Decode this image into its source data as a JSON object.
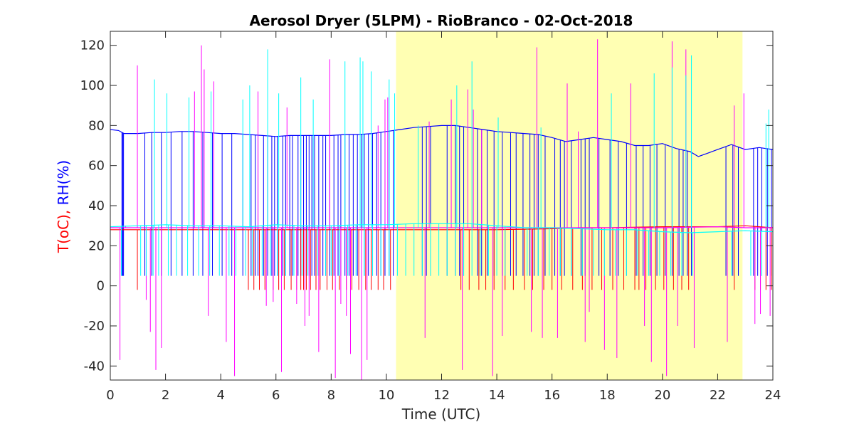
{
  "chart_data": {
    "type": "line",
    "title": "Aerosol Dryer (5LPM) - RioBranco - 02-Oct-2018",
    "xlabel": "Time (UTC)",
    "ylabel_parts": [
      {
        "text": "T(oC),",
        "color": "#ff0000"
      },
      {
        "text": " RH(%)",
        "color": "#0000ff"
      }
    ],
    "xlim": [
      0,
      24
    ],
    "ylim": [
      -47,
      127
    ],
    "xticks": [
      0,
      2,
      4,
      6,
      8,
      10,
      12,
      14,
      16,
      18,
      20,
      22,
      24
    ],
    "yticks": [
      -40,
      -20,
      0,
      20,
      40,
      60,
      80,
      100,
      120
    ],
    "grid": false,
    "shaded_region": {
      "x_start": 10.35,
      "x_end": 22.9,
      "color": "#ffffb3"
    },
    "series": [
      {
        "color": "#0000ff",
        "role": "RH baseline",
        "x": [
          0,
          0.3,
          0.5,
          1,
          1.5,
          2,
          2.5,
          3,
          3.5,
          4,
          4.5,
          5,
          5.5,
          6,
          6.5,
          7,
          7.5,
          8,
          8.5,
          9,
          9.5,
          10,
          10.5,
          11,
          11.5,
          12,
          12.5,
          13,
          13.5,
          14,
          14.5,
          15,
          15.5,
          16,
          16.5,
          17,
          17.5,
          18,
          18.5,
          19,
          19.5,
          20,
          20.5,
          21,
          21.3,
          21.6,
          22,
          22.5,
          23,
          23.5,
          24
        ],
        "y": [
          78,
          77.5,
          76,
          76,
          76.5,
          76.5,
          77,
          77,
          76.5,
          76,
          76,
          75.5,
          75,
          74.5,
          75,
          75,
          75,
          75,
          75.5,
          75.5,
          76,
          77,
          78,
          79,
          79.5,
          80,
          80,
          79,
          78,
          77,
          76.5,
          76,
          75.5,
          74,
          72,
          73,
          74,
          73,
          72,
          70,
          70,
          71,
          68.5,
          67,
          64.5,
          66,
          68,
          70.5,
          68,
          69,
          68
        ]
      },
      {
        "color": "#0000ff",
        "role": "RH dropouts",
        "drop_to": 5,
        "spikes": [
          0.42,
          0.45,
          0.48,
          1.25,
          1.5,
          1.85,
          2.2,
          2.6,
          3.0,
          3.35,
          3.7,
          4.05,
          4.4,
          4.8,
          5.1,
          5.25,
          5.35,
          5.55,
          5.7,
          5.85,
          5.95,
          6.05,
          6.25,
          6.35,
          6.5,
          6.6,
          6.8,
          6.9,
          7.0,
          7.1,
          7.2,
          7.3,
          7.4,
          7.55,
          7.7,
          7.8,
          7.95,
          8.1,
          8.25,
          8.35,
          8.5,
          8.65,
          8.8,
          8.95,
          9.1,
          9.2,
          9.35,
          9.5,
          9.65,
          9.8,
          9.95,
          10.1,
          10.25,
          11.3,
          11.45,
          11.6,
          12.2,
          12.5,
          12.65,
          12.8,
          13.3,
          13.45,
          13.65,
          13.9,
          14.2,
          14.5,
          14.7,
          14.95,
          15.2,
          15.35,
          15.5,
          15.75,
          16.1,
          16.3,
          16.45,
          16.7,
          17.05,
          17.2,
          17.35,
          17.7,
          18.1,
          18.4,
          18.7,
          19.05,
          19.3,
          19.55,
          19.8,
          20.1,
          20.35,
          20.6,
          20.75,
          20.9,
          21.05,
          22.3,
          22.55,
          22.75,
          23.3,
          23.45,
          23.6,
          23.8,
          23.95
        ]
      },
      {
        "color": "#ff0000",
        "role": "T trace",
        "x": [
          0,
          0.5,
          1,
          2,
          4,
          6,
          8,
          10,
          12,
          14,
          16,
          17,
          18,
          20,
          22,
          23,
          24
        ],
        "y": [
          28,
          28,
          28,
          28,
          28,
          28,
          28,
          28,
          28,
          28,
          28.5,
          29,
          29,
          29.5,
          29.5,
          30,
          29
        ]
      },
      {
        "color": "#ff0000",
        "role": "T dropouts",
        "drop_to": -2,
        "spikes": [
          0.98,
          5.0,
          5.2,
          5.4,
          5.6,
          5.9,
          6.1,
          6.3,
          6.55,
          6.75,
          6.9,
          7.0,
          7.1,
          7.25,
          7.45,
          7.6,
          7.85,
          8.05,
          8.3,
          8.55,
          8.75,
          9.0,
          9.25,
          9.45,
          9.7,
          9.9,
          10.15,
          12.7,
          13.0,
          13.35,
          13.6,
          13.9,
          14.3,
          14.6,
          15.0,
          15.3,
          15.7,
          16.0,
          16.35,
          16.75,
          17.1,
          17.45,
          17.8,
          18.2,
          18.6,
          19.0,
          19.15,
          19.4,
          19.75,
          20.05,
          20.4,
          20.7,
          20.95,
          22.35,
          22.6,
          23.35,
          23.55,
          23.75,
          23.95
        ]
      },
      {
        "color": "#ff00ff",
        "role": "sensor 2 trace",
        "x": [
          0,
          2,
          4,
          6,
          8,
          10,
          12,
          14,
          16,
          18,
          20,
          22,
          23,
          24
        ],
        "y": [
          29,
          29,
          29,
          29,
          29,
          29,
          29,
          29,
          29,
          29,
          29,
          29.5,
          29,
          29
        ]
      },
      {
        "color": "#ff00ff",
        "role": "sensor 2 spikes",
        "spikes": [
          [
            0.35,
            -37
          ],
          [
            0.55,
            30
          ],
          [
            0.98,
            110
          ],
          [
            1.3,
            -7
          ],
          [
            1.45,
            -23
          ],
          [
            1.65,
            -42
          ],
          [
            1.85,
            -31
          ],
          [
            3.05,
            97
          ],
          [
            3.3,
            120
          ],
          [
            3.4,
            108
          ],
          [
            3.55,
            -15
          ],
          [
            3.75,
            102
          ],
          [
            4.2,
            -28
          ],
          [
            4.5,
            -45
          ],
          [
            5.35,
            97
          ],
          [
            5.65,
            -10
          ],
          [
            5.9,
            -8
          ],
          [
            6.2,
            -43
          ],
          [
            6.4,
            89
          ],
          [
            6.75,
            -9
          ],
          [
            7.05,
            -20
          ],
          [
            7.2,
            -15
          ],
          [
            7.35,
            74
          ],
          [
            7.55,
            -33
          ],
          [
            7.95,
            113
          ],
          [
            8.15,
            -46
          ],
          [
            8.35,
            -9
          ],
          [
            8.55,
            -15
          ],
          [
            8.7,
            -34
          ],
          [
            9.1,
            -47
          ],
          [
            9.3,
            -37
          ],
          [
            9.45,
            77
          ],
          [
            9.7,
            80
          ],
          [
            9.95,
            93
          ],
          [
            10.05,
            94
          ],
          [
            11.4,
            -26
          ],
          [
            11.55,
            82
          ],
          [
            12.35,
            93
          ],
          [
            12.75,
            -42
          ],
          [
            12.95,
            98
          ],
          [
            13.15,
            88
          ],
          [
            13.45,
            78
          ],
          [
            13.85,
            -45
          ],
          [
            14.2,
            -25
          ],
          [
            15.25,
            -23
          ],
          [
            15.45,
            119
          ],
          [
            15.65,
            -26
          ],
          [
            16.2,
            -26
          ],
          [
            16.55,
            101
          ],
          [
            16.95,
            77
          ],
          [
            17.2,
            -28
          ],
          [
            17.35,
            -13
          ],
          [
            17.65,
            123
          ],
          [
            17.9,
            -32
          ],
          [
            18.35,
            -36
          ],
          [
            18.85,
            101
          ],
          [
            19.35,
            -20
          ],
          [
            19.6,
            -38
          ],
          [
            20.15,
            -45
          ],
          [
            20.35,
            122
          ],
          [
            20.55,
            -20
          ],
          [
            20.85,
            118
          ],
          [
            21.15,
            -31
          ],
          [
            22.35,
            -28
          ],
          [
            22.6,
            90
          ],
          [
            22.95,
            96
          ],
          [
            23.35,
            -19
          ],
          [
            23.55,
            -14
          ],
          [
            23.9,
            -15
          ]
        ]
      },
      {
        "color": "#00ffff",
        "role": "sensor 2 RH trace",
        "x": [
          0,
          1,
          2,
          3,
          4,
          5,
          6,
          7,
          8,
          9,
          10,
          11,
          12,
          13,
          14,
          15,
          16,
          17,
          18,
          19,
          20,
          21,
          22,
          23,
          24
        ],
        "y": [
          29.5,
          30,
          30.5,
          30,
          30,
          29.5,
          30.5,
          30,
          30,
          30.5,
          30.5,
          31,
          31,
          31,
          30,
          29,
          29,
          28.5,
          28,
          28,
          27,
          26.5,
          27,
          27.5,
          27
        ]
      },
      {
        "color": "#00ffff",
        "role": "sensor 2 RH dropouts",
        "drop_to": 5,
        "spikes": [
          0.4,
          1.1,
          1.3,
          1.55,
          1.75,
          2.1,
          2.4,
          2.8,
          3.2,
          3.6,
          3.95,
          4.3,
          4.55,
          4.9,
          5.15,
          5.5,
          5.8,
          6.05,
          6.35,
          6.65,
          6.95,
          7.15,
          7.5,
          7.8,
          8.0,
          8.3,
          8.6,
          8.9,
          9.2,
          9.5,
          9.8,
          10.1,
          10.4,
          10.7,
          11.0,
          11.3,
          11.6,
          11.9,
          12.2,
          12.5,
          12.8,
          13.1,
          13.4,
          13.7,
          14.0,
          14.3,
          15.1,
          15.5,
          15.9,
          16.3,
          16.7,
          17.1,
          17.5,
          17.9,
          18.3,
          18.7,
          19.1,
          19.5,
          19.9,
          20.3,
          20.7,
          21.1,
          22.5,
          23.2,
          23.6
        ]
      },
      {
        "color": "#00ffff",
        "role": "sensor 2 RH spikes",
        "spikes": [
          [
            1.6,
            103
          ],
          [
            2.05,
            96
          ],
          [
            2.85,
            94
          ],
          [
            3.65,
            97
          ],
          [
            4.8,
            93
          ],
          [
            5.05,
            100
          ],
          [
            5.7,
            118
          ],
          [
            6.1,
            96
          ],
          [
            6.9,
            104
          ],
          [
            7.35,
            93
          ],
          [
            8.5,
            112
          ],
          [
            9.05,
            114
          ],
          [
            9.15,
            112
          ],
          [
            9.45,
            107
          ],
          [
            10.1,
            103
          ],
          [
            10.3,
            96
          ],
          [
            11.15,
            80
          ],
          [
            12.55,
            100
          ],
          [
            13.1,
            112
          ],
          [
            14.05,
            84
          ],
          [
            15.6,
            79
          ],
          [
            18.15,
            96
          ],
          [
            19.7,
            106
          ],
          [
            20.35,
            109
          ],
          [
            20.85,
            105
          ],
          [
            21.05,
            115
          ],
          [
            23.75,
            81
          ],
          [
            23.85,
            88
          ]
        ]
      }
    ]
  }
}
